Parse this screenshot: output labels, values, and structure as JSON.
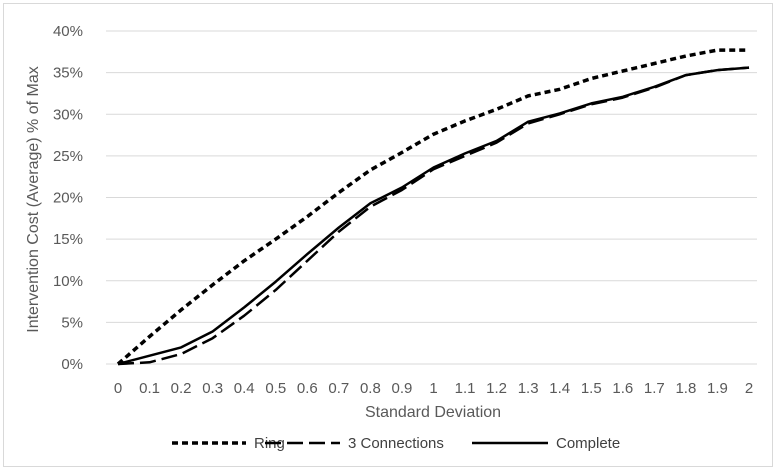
{
  "chart_data": {
    "type": "line",
    "title": "",
    "xlabel": "Standard Deviation",
    "ylabel": "Intervention Cost (Average) % of Max",
    "x": [
      0,
      0.1,
      0.2,
      0.3,
      0.4,
      0.5,
      0.6,
      0.7,
      0.8,
      0.9,
      1,
      1.1,
      1.2,
      1.3,
      1.4,
      1.5,
      1.6,
      1.7,
      1.8,
      1.9,
      2
    ],
    "x_tick_labels": [
      "0",
      "0.1",
      "0.2",
      "0.3",
      "0.4",
      "0.5",
      "0.6",
      "0.7",
      "0.8",
      "0.9",
      "1",
      "1.1",
      "1.2",
      "1.3",
      "1.4",
      "1.5",
      "1.6",
      "1.7",
      "1.8",
      "1.9",
      "2"
    ],
    "ylim": [
      0,
      0.4
    ],
    "y_ticks": [
      0,
      0.05,
      0.1,
      0.15,
      0.2,
      0.25,
      0.3,
      0.35,
      0.4
    ],
    "y_tick_labels": [
      "0%",
      "5%",
      "10%",
      "15%",
      "20%",
      "25%",
      "30%",
      "35%",
      "40%"
    ],
    "grid": "horizontal",
    "legend_position": "bottom",
    "series": [
      {
        "name": "Ring",
        "dash": "short-dash",
        "color": "#000000",
        "values": [
          0.0,
          0.033,
          0.065,
          0.095,
          0.124,
          0.15,
          0.177,
          0.206,
          0.233,
          0.254,
          0.276,
          0.292,
          0.306,
          0.322,
          0.33,
          0.343,
          0.352,
          0.361,
          0.37,
          0.377,
          0.377
        ]
      },
      {
        "name": "3 Connections",
        "dash": "long-dash",
        "color": "#000000",
        "values": [
          0.0,
          0.002,
          0.012,
          0.031,
          0.058,
          0.089,
          0.124,
          0.159,
          0.189,
          0.209,
          0.234,
          0.25,
          0.266,
          0.289,
          0.3,
          0.312,
          0.32,
          0.332,
          0.347,
          0.353,
          0.356
        ]
      },
      {
        "name": "Complete",
        "dash": "solid",
        "color": "#000000",
        "values": [
          0.0,
          0.01,
          0.02,
          0.039,
          0.068,
          0.099,
          0.132,
          0.164,
          0.193,
          0.212,
          0.236,
          0.253,
          0.268,
          0.291,
          0.301,
          0.313,
          0.321,
          0.333,
          0.347,
          0.353,
          0.356
        ]
      }
    ]
  }
}
